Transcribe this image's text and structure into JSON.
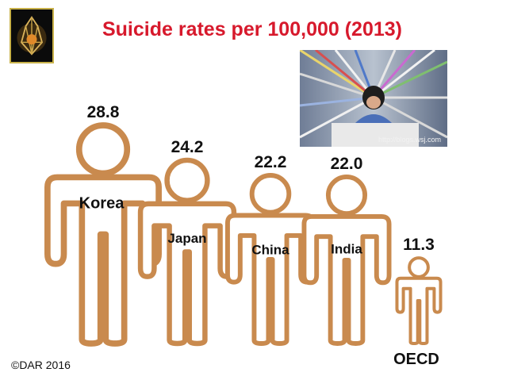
{
  "title": "Suicide rates per 100,000 (2013)",
  "copyright": "©DAR 2016",
  "photo": {
    "credit": "http://blogs.wsj.com"
  },
  "colors": {
    "title": "#d7192c",
    "figure_outline": "#c98a4e",
    "figure_fill": "#ffffff",
    "text": "#111111"
  },
  "icons": {
    "logo": "lantern-logo-icon",
    "figure": "person-outline-icon"
  },
  "chart_data": {
    "type": "bar",
    "mark": "person-icon",
    "title": "Suicide rates per 100,000 (2013)",
    "categories": [
      "Korea",
      "Japan",
      "China",
      "India",
      "OECD"
    ],
    "values": [
      28.8,
      24.2,
      22.2,
      22.0,
      11.3
    ],
    "value_labels": [
      "28.8",
      "24.2",
      "22.2",
      "22.0",
      "11.3"
    ],
    "xlabel": "",
    "ylabel": "",
    "grid": false,
    "legend": "none"
  }
}
